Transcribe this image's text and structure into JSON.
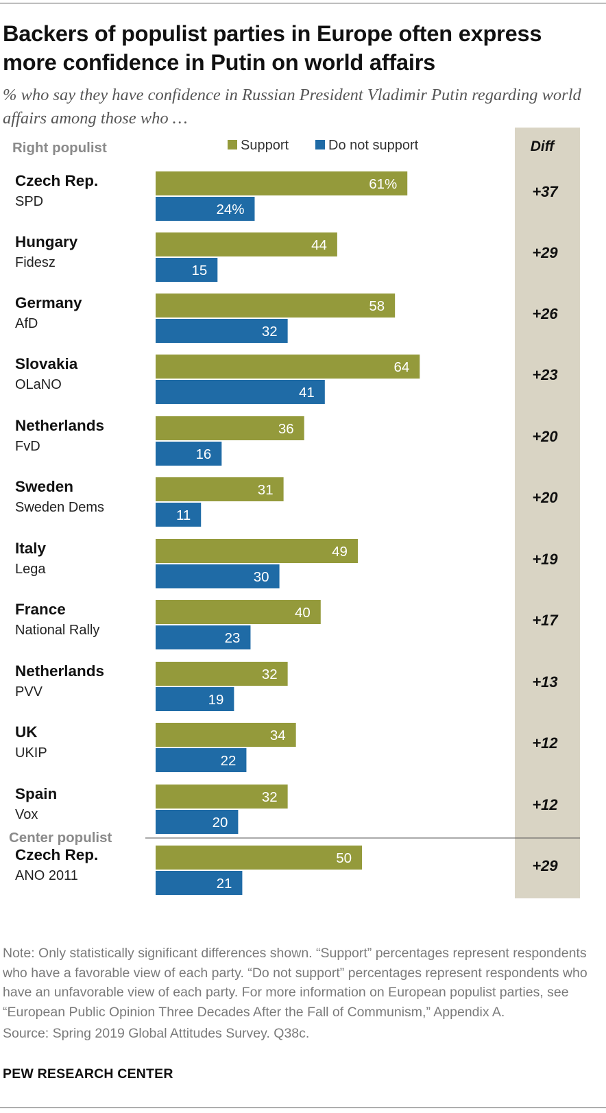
{
  "title": "Backers of populist parties in Europe often express more confidence in Putin on world affairs",
  "subtitle": "% who say they have confidence in Russian President Vladimir Putin regarding world affairs among those who …",
  "legend": {
    "support": "Support",
    "not_support": "Do not support",
    "diff_header": "Diff"
  },
  "colors": {
    "support": "#949a3b",
    "not_support": "#1f6ba6",
    "diff_bg": "#d9d4c4",
    "group_label": "#8a8a8a"
  },
  "note": "Note: Only statistically significant differences shown. “Support” percentages represent respondents who have a favorable view of each party. “Do not support” percentages represent respondents who have an unfavorable view of each party. For more information on European populist parties, see “European Public Opinion Three Decades After the Fall of Communism,” Appendix A.",
  "source": "Source: Spring 2019 Global Attitudes Survey. Q38c.",
  "footer": "PEW RESEARCH CENTER",
  "chart_data": {
    "type": "bar",
    "orientation": "horizontal",
    "xlim": [
      0,
      100
    ],
    "series": [
      {
        "name": "Support",
        "key": "support"
      },
      {
        "name": "Do not support",
        "key": "not_support"
      }
    ],
    "groups": [
      {
        "name": "Right populist",
        "rows": [
          {
            "country": "Czech Rep.",
            "party": "SPD",
            "support": 61,
            "not_support": 24,
            "support_label": "61%",
            "not_support_label": "24%",
            "diff": "+37"
          },
          {
            "country": "Hungary",
            "party": "Fidesz",
            "support": 44,
            "not_support": 15,
            "support_label": "44",
            "not_support_label": "15",
            "diff": "+29"
          },
          {
            "country": "Germany",
            "party": "AfD",
            "support": 58,
            "not_support": 32,
            "support_label": "58",
            "not_support_label": "32",
            "diff": "+26"
          },
          {
            "country": "Slovakia",
            "party": "OLaNO",
            "support": 64,
            "not_support": 41,
            "support_label": "64",
            "not_support_label": "41",
            "diff": "+23"
          },
          {
            "country": "Netherlands",
            "party": "FvD",
            "support": 36,
            "not_support": 16,
            "support_label": "36",
            "not_support_label": "16",
            "diff": "+20"
          },
          {
            "country": "Sweden",
            "party": "Sweden Dems",
            "support": 31,
            "not_support": 11,
            "support_label": "31",
            "not_support_label": "11",
            "diff": "+20"
          },
          {
            "country": "Italy",
            "party": "Lega",
            "support": 49,
            "not_support": 30,
            "support_label": "49",
            "not_support_label": "30",
            "diff": "+19"
          },
          {
            "country": "France",
            "party": "National Rally",
            "support": 40,
            "not_support": 23,
            "support_label": "40",
            "not_support_label": "23",
            "diff": "+17"
          },
          {
            "country": "Netherlands",
            "party": "PVV",
            "support": 32,
            "not_support": 19,
            "support_label": "32",
            "not_support_label": "19",
            "diff": "+13"
          },
          {
            "country": "UK",
            "party": "UKIP",
            "support": 34,
            "not_support": 22,
            "support_label": "34",
            "not_support_label": "22",
            "diff": "+12"
          },
          {
            "country": "Spain",
            "party": "Vox",
            "support": 32,
            "not_support": 20,
            "support_label": "32",
            "not_support_label": "20",
            "diff": "+12"
          }
        ]
      },
      {
        "name": "Center populist",
        "rows": [
          {
            "country": "Czech Rep.",
            "party": "ANO 2011",
            "support": 50,
            "not_support": 21,
            "support_label": "50",
            "not_support_label": "21",
            "diff": "+29"
          }
        ]
      }
    ]
  }
}
